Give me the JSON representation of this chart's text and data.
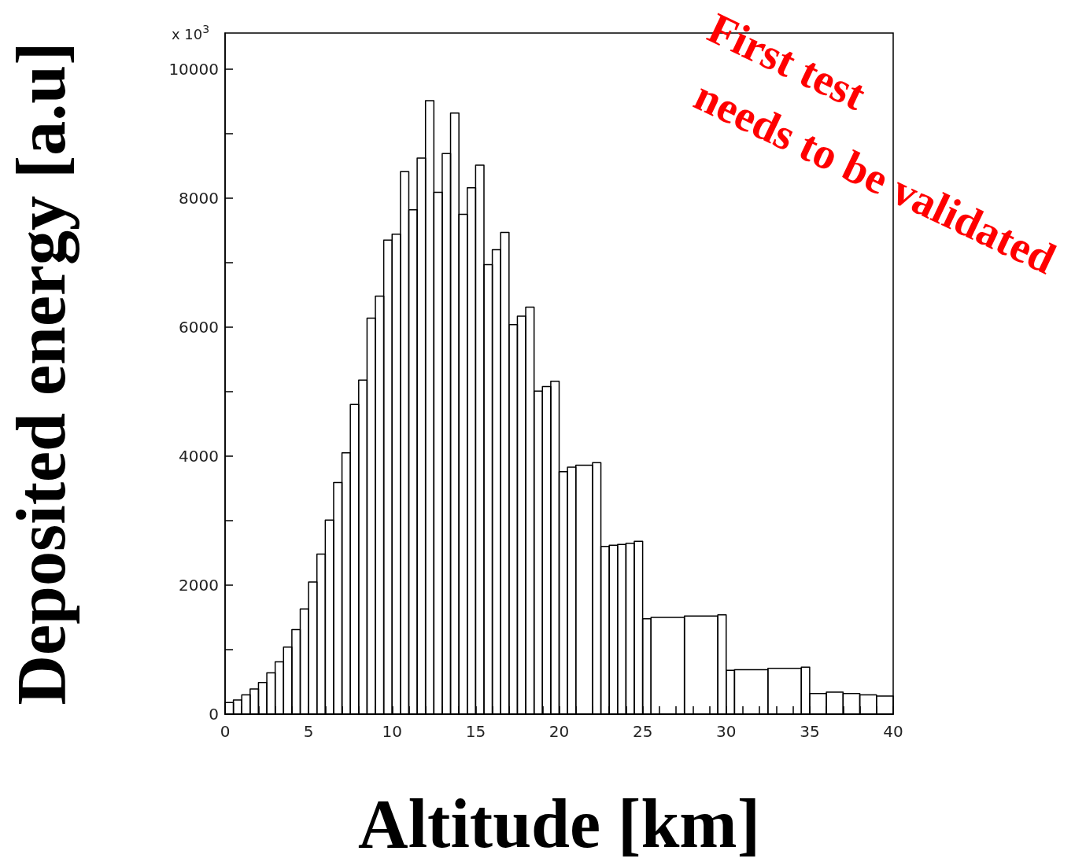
{
  "chart_data": {
    "type": "histogram",
    "xlabel": "Altitude [km]",
    "ylabel": "Deposited energy [a.u]",
    "annotations": [
      "x 10$^{3}$",
      "First test",
      "needs to be validated"
    ],
    "bins": [
      0,
      0.5,
      1,
      1.5,
      2,
      2.5,
      3,
      3.5,
      4,
      4.5,
      5,
      5.5,
      6,
      6.5,
      7,
      7.5,
      8,
      8.5,
      9,
      9.5,
      10,
      10.5,
      11,
      11.5,
      12,
      12.5,
      13,
      13.5,
      14,
      14.5,
      15,
      15.5,
      16,
      16.5,
      17,
      17.5,
      18,
      18.5,
      19,
      19.5,
      20,
      20.5,
      21,
      22,
      22.5,
      23,
      23.5,
      24,
      24.5,
      25,
      25.5,
      27.5,
      29.5,
      30,
      30.5,
      32.5,
      34.5,
      35,
      36,
      37,
      38,
      39,
      40
    ],
    "values": [
      180,
      220,
      300,
      390,
      490,
      640,
      810,
      1040,
      1310,
      1630,
      2050,
      2480,
      3010,
      3590,
      4050,
      4800,
      5180,
      6140,
      6480,
      7350,
      7440,
      8410,
      7820,
      8620,
      9510,
      8090,
      8690,
      9320,
      7750,
      8160,
      8510,
      6970,
      7200,
      7470,
      6040,
      6170,
      6310,
      5010,
      5080,
      5160,
      3760,
      3830,
      3860,
      3900,
      2600,
      2620,
      2630,
      2650,
      2680,
      1480,
      1500,
      1520,
      1540,
      680,
      690,
      710,
      730,
      320,
      340,
      320,
      300,
      280
    ],
    "color": "#000000",
    "xlim": [
      0,
      40
    ],
    "xticks": [
      0,
      {
        "value": 1,
        "label": null
      },
      {
        "value": 2,
        "label": null
      },
      {
        "value": 3,
        "label": null
      },
      {
        "value": 4,
        "label": null
      },
      5,
      {
        "value": 6,
        "label": null
      },
      {
        "value": 7,
        "label": null
      },
      {
        "value": 8,
        "label": null
      },
      {
        "value": 9,
        "label": null
      },
      10,
      {
        "value": 11,
        "label": null
      },
      {
        "value": 12,
        "label": null
      },
      {
        "value": 13,
        "label": null
      },
      {
        "value": 14,
        "label": null
      },
      15,
      {
        "value": 16,
        "label": null
      },
      {
        "value": 17,
        "label": null
      },
      {
        "value": 18,
        "label": null
      },
      {
        "value": 19,
        "label": null
      },
      20,
      {
        "value": 21,
        "label": null
      },
      {
        "value": 22,
        "label": null
      },
      {
        "value": 23,
        "label": null
      },
      {
        "value": 24,
        "label": null
      },
      25,
      {
        "value": 26,
        "label": null
      },
      {
        "value": 27,
        "label": null
      },
      {
        "value": 28,
        "label": null
      },
      {
        "value": 29,
        "label": null
      },
      30,
      {
        "value": 31,
        "label": null
      },
      {
        "value": 32,
        "label": null
      },
      {
        "value": 33,
        "label": null
      },
      {
        "value": 34,
        "label": null
      },
      35,
      {
        "value": 36,
        "label": null
      },
      {
        "value": 37,
        "label": null
      },
      {
        "value": 38,
        "label": null
      },
      {
        "value": 39,
        "label": null
      },
      40
    ],
    "ylim": [
      0,
      10560
    ],
    "yticks": [
      0,
      {
        "value": 1000,
        "label": null
      },
      2000,
      {
        "value": 3000,
        "label": null
      },
      4000,
      {
        "value": 5000,
        "label": null
      },
      6000,
      {
        "value": 7000,
        "label": null
      },
      8000,
      {
        "value": 9000,
        "label": null
      },
      10000
    ],
    "grid": false
  }
}
